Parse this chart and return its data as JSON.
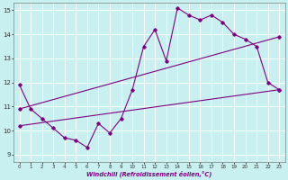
{
  "xlabel": "Windchill (Refroidissement éolien,°C)",
  "ylabel": "",
  "bg_color": "#c8f0f0",
  "line_color": "#800080",
  "grid_color": "#ffffff",
  "xlim": [
    -0.5,
    23.5
  ],
  "ylim": [
    8.7,
    15.3
  ],
  "yticks": [
    9,
    10,
    11,
    12,
    13,
    14,
    15
  ],
  "xticks": [
    0,
    1,
    2,
    3,
    4,
    5,
    6,
    7,
    8,
    9,
    10,
    11,
    12,
    13,
    14,
    15,
    16,
    17,
    18,
    19,
    20,
    21,
    22,
    23
  ],
  "line1_x": [
    0,
    1,
    2,
    3,
    4,
    5,
    6,
    7,
    8,
    9,
    10,
    11,
    12,
    13,
    14,
    15,
    16,
    17,
    18,
    19,
    20,
    21,
    22,
    23
  ],
  "line1_y": [
    11.9,
    10.9,
    10.5,
    10.1,
    9.7,
    9.6,
    9.3,
    10.3,
    9.9,
    10.5,
    11.7,
    13.5,
    14.2,
    12.9,
    15.1,
    14.8,
    14.6,
    14.8,
    14.5,
    14.0,
    13.8,
    13.5,
    12.0,
    11.7
  ],
  "line2_x": [
    0,
    23
  ],
  "line2_y": [
    10.9,
    13.9
  ],
  "line3_x": [
    0,
    23
  ],
  "line3_y": [
    10.2,
    11.7
  ]
}
